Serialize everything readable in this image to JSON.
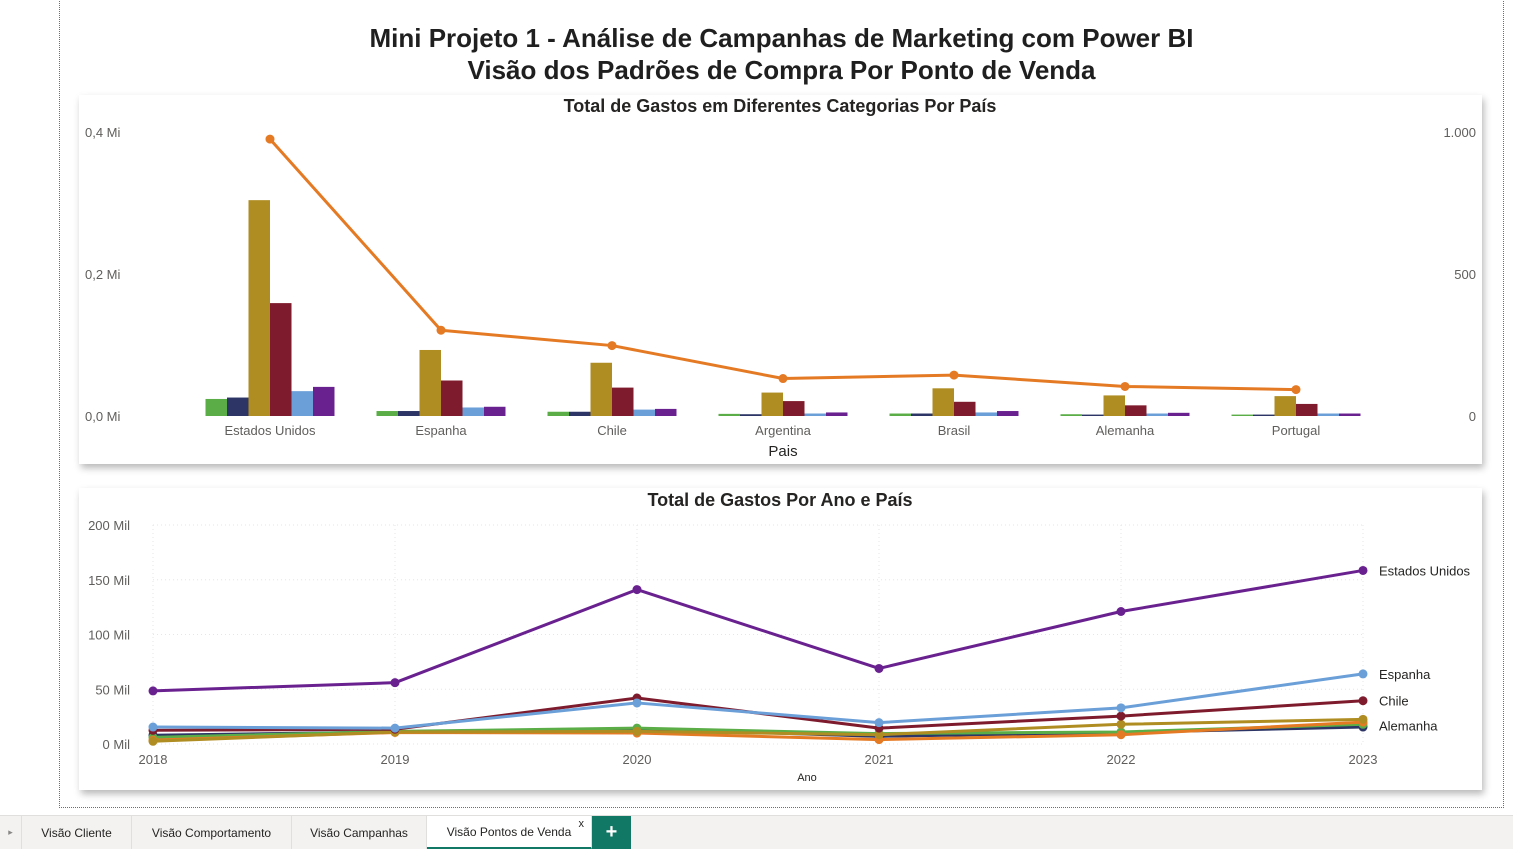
{
  "page": {
    "title_line1": "Mini Projeto 1 - Análise de Campanhas de Marketing com Power BI",
    "title_line2": "Visão dos Padrões de Compra Por Ponto de Venda"
  },
  "tabs": [
    {
      "label": "Visão Cliente",
      "active": false
    },
    {
      "label": "Visão Comportamento",
      "active": false
    },
    {
      "label": "Visão Campanhas",
      "active": false
    },
    {
      "label": "Visão Pontos de Venda",
      "active": true
    }
  ],
  "tab_controls": {
    "close_label": "x",
    "add_label": "+",
    "scroll_label": "▸"
  },
  "colors": {
    "green": "#5BAE47",
    "navy": "#2C3566",
    "gold": "#B08D22",
    "maroon": "#7E1B2C",
    "lightblue": "#6A9FD8",
    "purple": "#6A2190",
    "orange": "#E57A24",
    "grid": "#e6e6e6",
    "axis_text": "#605e5c"
  },
  "chart_data": [
    {
      "type": "bar",
      "title": "Total de Gastos em Diferentes Categorias Por País",
      "xlabel": "Pais",
      "ylabel": "",
      "ylim": [
        0,
        400000
      ],
      "y2lim": [
        0,
        1000
      ],
      "y_ticks": [
        {
          "value": 0,
          "label": "0,0 Mi"
        },
        {
          "value": 200000,
          "label": "0,2 Mi"
        },
        {
          "value": 400000,
          "label": "0,4 Mi"
        }
      ],
      "y2_ticks": [
        {
          "value": 0,
          "label": "0"
        },
        {
          "value": 500,
          "label": "500"
        },
        {
          "value": 1000,
          "label": "1.000"
        }
      ],
      "categories": [
        "Estados Unidos",
        "Espanha",
        "Chile",
        "Argentina",
        "Brasil",
        "Alemanha",
        "Portugal"
      ],
      "series": [
        {
          "color": "green",
          "values": [
            24000,
            7000,
            6000,
            3000,
            3500,
            2500,
            2000
          ]
        },
        {
          "color": "navy",
          "values": [
            26000,
            7000,
            6000,
            2500,
            3500,
            2000,
            2000
          ]
        },
        {
          "color": "gold",
          "values": [
            304000,
            93000,
            75000,
            33000,
            39000,
            29000,
            28000
          ]
        },
        {
          "color": "maroon",
          "values": [
            159000,
            50000,
            40000,
            21000,
            20000,
            15000,
            17000
          ]
        },
        {
          "color": "lightblue",
          "values": [
            35000,
            12000,
            9000,
            3500,
            5000,
            3500,
            3500
          ]
        },
        {
          "color": "purple",
          "values": [
            41000,
            13000,
            10000,
            5000,
            7000,
            4500,
            3500
          ]
        }
      ],
      "line_series": {
        "color": "orange",
        "axis": "secondary",
        "values": [
          975,
          302,
          248,
          132,
          144,
          104,
          93
        ]
      },
      "grid": false
    },
    {
      "type": "line",
      "title": "Total de Gastos Por Ano e País",
      "xlabel": "Ano",
      "ylabel": "",
      "ylim": [
        0,
        200000
      ],
      "y_ticks": [
        {
          "value": 0,
          "label": "0 Mil"
        },
        {
          "value": 50000,
          "label": "50 Mil"
        },
        {
          "value": 100000,
          "label": "100 Mil"
        },
        {
          "value": 150000,
          "label": "150 Mil"
        },
        {
          "value": 200000,
          "label": "200 Mil"
        }
      ],
      "x": [
        "2018",
        "2019",
        "2020",
        "2021",
        "2022",
        "2023"
      ],
      "series": [
        {
          "name": "Estados Unidos",
          "color": "purple",
          "values": [
            48500,
            56000,
            141000,
            69000,
            121000,
            158500
          ]
        },
        {
          "name": "",
          "color": "navy",
          "values": [
            8000,
            11000,
            14000,
            7000,
            10500,
            15500
          ]
        },
        {
          "name": "",
          "color": "green",
          "values": [
            6000,
            11500,
            14500,
            9500,
            11000,
            18000
          ]
        },
        {
          "name": "Alemanha",
          "color": "gold",
          "values": [
            2500,
            11000,
            11500,
            8500,
            18000,
            22500
          ]
        },
        {
          "name": "",
          "color": "orange",
          "values": [
            3500,
            10500,
            10000,
            4000,
            8500,
            20000
          ]
        },
        {
          "name": "Chile",
          "color": "maroon",
          "values": [
            12500,
            13500,
            42000,
            14500,
            25500,
            39500
          ]
        },
        {
          "name": "Espanha",
          "color": "lightblue",
          "values": [
            15500,
            14500,
            37500,
            19500,
            33000,
            64000
          ]
        }
      ],
      "grid": true
    }
  ]
}
